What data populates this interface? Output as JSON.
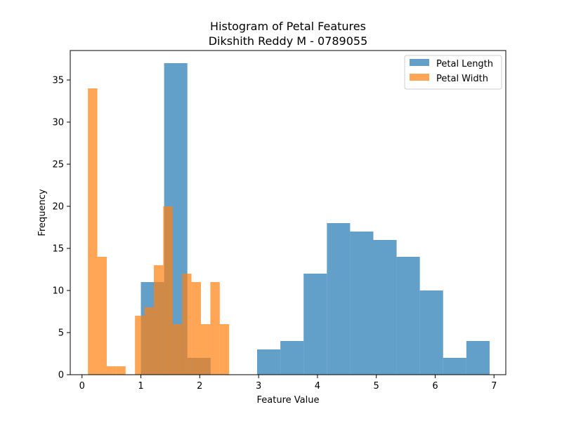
{
  "chart_data": {
    "type": "histogram",
    "title_line1": "Histogram of Petal Features",
    "title_line2": "Dikshith Reddy M - 0789055",
    "xlabel": "Feature Value",
    "ylabel": "Frequency",
    "xlim": [
      -0.2,
      7.2
    ],
    "ylim": [
      0,
      38.5
    ],
    "xticks": [
      0,
      1,
      2,
      3,
      4,
      5,
      6,
      7
    ],
    "yticks": [
      0,
      5,
      10,
      15,
      20,
      25,
      30,
      35
    ],
    "grid": false,
    "legend_position": "top-right",
    "series": [
      {
        "name": "Petal Length",
        "color": "#1f77b4",
        "opacity": 0.7,
        "bin_edges": [
          1.0,
          1.395,
          1.79,
          2.185,
          2.58,
          2.975,
          3.37,
          3.765,
          4.16,
          4.555,
          4.95,
          5.345,
          5.74,
          6.135,
          6.53,
          6.925
        ],
        "counts": [
          11,
          37,
          2,
          0,
          0,
          3,
          4,
          12,
          18,
          17,
          16,
          14,
          10,
          2,
          4
        ]
      },
      {
        "name": "Petal Width",
        "color": "#ff7f0e",
        "opacity": 0.7,
        "bin_edges": [
          0.1,
          0.26,
          0.42,
          0.58,
          0.74,
          0.9,
          1.06,
          1.22,
          1.38,
          1.54,
          1.7,
          1.86,
          2.02,
          2.18,
          2.34,
          2.5
        ],
        "counts": [
          34,
          14,
          1,
          1,
          0,
          7,
          8,
          13,
          20,
          6,
          12,
          11,
          6,
          11,
          6
        ]
      }
    ]
  }
}
